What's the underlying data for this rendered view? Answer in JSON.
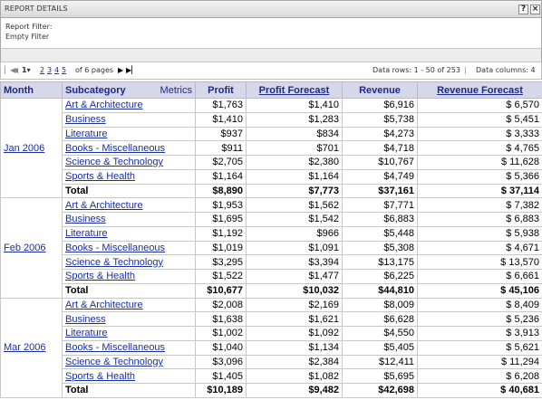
{
  "window": {
    "title": "REPORT DETAILS",
    "help_label": "?",
    "close_label": "×"
  },
  "filters": {
    "report_filter": "Report Filter:",
    "empty_filter": "Empty Filter"
  },
  "pager": {
    "first_icon": "first-page-icon",
    "prev_icon": "previous-page-icon",
    "current_page": "1",
    "pages": [
      "2",
      "3",
      "4",
      "5"
    ],
    "of_pages": "of 6 pages",
    "next_icon": "next-page-icon",
    "last_icon": "last-page-icon",
    "data_rows": "Data rows: 1 - 50 of 253",
    "separator": "|",
    "data_columns": "Data columns: 4"
  },
  "grid": {
    "headers": {
      "month": "Month",
      "subcategory": "Subcategory",
      "metrics": "Metrics",
      "profit": "Profit",
      "profit_forecast": "Profit Forecast",
      "revenue": "Revenue",
      "revenue_forecast": "Revenue Forecast"
    },
    "groups": [
      {
        "month": "Jan 2006",
        "rows": [
          {
            "sub": "Art & Architecture",
            "profit": "$1,763",
            "pf": "$1,410",
            "rev": "$6,916",
            "rf": "$ 6,570"
          },
          {
            "sub": "Business",
            "profit": "$1,410",
            "pf": "$1,283",
            "rev": "$5,738",
            "rf": "$ 5,451"
          },
          {
            "sub": "Literature",
            "profit": "$937",
            "pf": "$834",
            "rev": "$4,273",
            "rf": "$ 3,333"
          },
          {
            "sub": "Books - Miscellaneous",
            "profit": "$911",
            "pf": "$701",
            "rev": "$4,718",
            "rf": "$ 4,765"
          },
          {
            "sub": "Science & Technology",
            "profit": "$2,705",
            "pf": "$2,380",
            "rev": "$10,767",
            "rf": "$ 11,628"
          },
          {
            "sub": "Sports & Health",
            "profit": "$1,164",
            "pf": "$1,164",
            "rev": "$4,749",
            "rf": "$ 5,366"
          }
        ],
        "total": {
          "sub": "Total",
          "profit": "$8,890",
          "pf": "$7,773",
          "rev": "$37,161",
          "rf": "$ 37,114"
        }
      },
      {
        "month": "Feb 2006",
        "rows": [
          {
            "sub": "Art & Architecture",
            "profit": "$1,953",
            "pf": "$1,562",
            "rev": "$7,771",
            "rf": "$ 7,382"
          },
          {
            "sub": "Business",
            "profit": "$1,695",
            "pf": "$1,542",
            "rev": "$6,883",
            "rf": "$ 6,883"
          },
          {
            "sub": "Literature",
            "profit": "$1,192",
            "pf": "$966",
            "rev": "$5,448",
            "rf": "$ 5,938"
          },
          {
            "sub": "Books - Miscellaneous",
            "profit": "$1,019",
            "pf": "$1,091",
            "rev": "$5,308",
            "rf": "$ 4,671"
          },
          {
            "sub": "Science & Technology",
            "profit": "$3,295",
            "pf": "$3,394",
            "rev": "$13,175",
            "rf": "$ 13,570"
          },
          {
            "sub": "Sports & Health",
            "profit": "$1,522",
            "pf": "$1,477",
            "rev": "$6,225",
            "rf": "$ 6,661"
          }
        ],
        "total": {
          "sub": "Total",
          "profit": "$10,677",
          "pf": "$10,032",
          "rev": "$44,810",
          "rf": "$ 45,106"
        }
      },
      {
        "month": "Mar 2006",
        "rows": [
          {
            "sub": "Art & Architecture",
            "profit": "$2,008",
            "pf": "$2,169",
            "rev": "$8,009",
            "rf": "$ 8,409"
          },
          {
            "sub": "Business",
            "profit": "$1,638",
            "pf": "$1,621",
            "rev": "$6,628",
            "rf": "$ 5,236"
          },
          {
            "sub": "Literature",
            "profit": "$1,002",
            "pf": "$1,092",
            "rev": "$4,550",
            "rf": "$ 3,913"
          },
          {
            "sub": "Books - Miscellaneous",
            "profit": "$1,040",
            "pf": "$1,134",
            "rev": "$5,405",
            "rf": "$ 5,621"
          },
          {
            "sub": "Science & Technology",
            "profit": "$3,096",
            "pf": "$2,384",
            "rev": "$12,411",
            "rf": "$ 11,294"
          },
          {
            "sub": "Sports & Health",
            "profit": "$1,405",
            "pf": "$1,082",
            "rev": "$5,695",
            "rf": "$ 6,208"
          }
        ],
        "total": {
          "sub": "Total",
          "profit": "$10,189",
          "pf": "$9,482",
          "rev": "$42,698",
          "rf": "$ 40,681"
        }
      }
    ]
  }
}
